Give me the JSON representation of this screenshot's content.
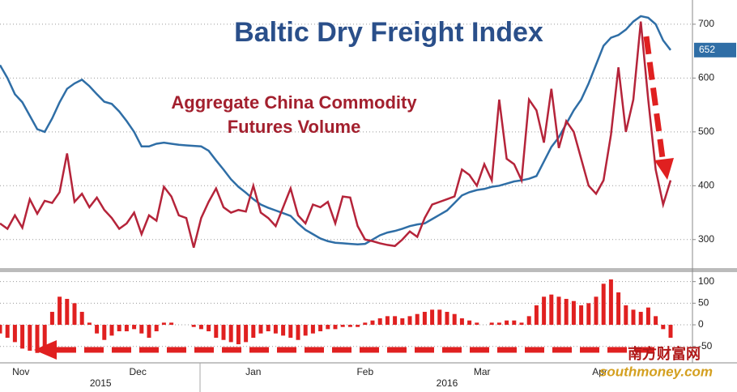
{
  "chart_data": [
    {
      "type": "line",
      "title": "Baltic Dry Freight Index",
      "annotation": "Aggregate China Commodity\nFutures Volume",
      "ylim": [
        247,
        745
      ],
      "yticks": [
        300,
        400,
        500,
        600,
        700
      ],
      "grid": true,
      "end_label": "652",
      "series": [
        {
          "name": "Baltic Dry Freight Index",
          "color": "#2f6ea6",
          "values": [
            624,
            600,
            570,
            555,
            530,
            505,
            500,
            525,
            555,
            580,
            590,
            597,
            585,
            570,
            556,
            552,
            538,
            520,
            500,
            473,
            473,
            478,
            480,
            478,
            476,
            475,
            474,
            473,
            465,
            447,
            430,
            412,
            398,
            387,
            375,
            365,
            359,
            354,
            349,
            344,
            330,
            318,
            310,
            302,
            297,
            294,
            293,
            292,
            291,
            292,
            300,
            308,
            313,
            316,
            320,
            325,
            328,
            330,
            338,
            346,
            354,
            368,
            382,
            388,
            392,
            394,
            398,
            400,
            404,
            408,
            410,
            413,
            418,
            445,
            472,
            490,
            515,
            540,
            560,
            590,
            625,
            660,
            675,
            680,
            690,
            705,
            715,
            712,
            700,
            670,
            652
          ]
        },
        {
          "name": "Aggregate China Commodity Futures Volume",
          "color": "#b5243a",
          "values": [
            330,
            320,
            345,
            322,
            375,
            348,
            372,
            368,
            388,
            460,
            370,
            385,
            360,
            378,
            355,
            340,
            320,
            330,
            350,
            310,
            345,
            335,
            398,
            380,
            345,
            340,
            285,
            340,
            370,
            395,
            360,
            350,
            355,
            352,
            400,
            350,
            340,
            325,
            360,
            395,
            345,
            330,
            365,
            360,
            370,
            330,
            380,
            378,
            325,
            300,
            297,
            293,
            290,
            288,
            300,
            315,
            305,
            340,
            365,
            370,
            375,
            380,
            430,
            420,
            400,
            440,
            410,
            560,
            450,
            440,
            410,
            560,
            540,
            480,
            580,
            470,
            520,
            500,
            450,
            400,
            385,
            410,
            495,
            620,
            500,
            560,
            705,
            560,
            430,
            365,
            410
          ]
        }
      ]
    },
    {
      "type": "bar",
      "color": "#e02020",
      "ylim": [
        -88,
        120
      ],
      "yticks": [
        -50,
        0,
        50,
        100
      ],
      "grid": true,
      "values": [
        -20,
        -30,
        -40,
        -55,
        -60,
        -65,
        -50,
        30,
        65,
        60,
        50,
        30,
        5,
        -20,
        -35,
        -25,
        -15,
        -15,
        -10,
        -20,
        -30,
        -15,
        5,
        5,
        0,
        0,
        -5,
        -10,
        -15,
        -30,
        -35,
        -40,
        -45,
        -40,
        -30,
        -20,
        -15,
        -20,
        -25,
        -30,
        -35,
        -25,
        -20,
        -15,
        -10,
        -10,
        -5,
        -5,
        -5,
        5,
        10,
        15,
        20,
        20,
        15,
        20,
        25,
        30,
        35,
        35,
        30,
        25,
        15,
        10,
        5,
        0,
        5,
        5,
        10,
        10,
        5,
        20,
        45,
        65,
        70,
        65,
        60,
        55,
        45,
        50,
        65,
        95,
        105,
        75,
        45,
        35,
        30,
        40,
        20,
        -10,
        -30
      ],
      "xticks": [
        {
          "value": 2.8,
          "label": "Nov"
        },
        {
          "value": 18.5,
          "label": "Dec"
        },
        {
          "value": 34,
          "label": "Jan"
        },
        {
          "value": 49,
          "label": "Feb"
        },
        {
          "value": 64.7,
          "label": "Mar"
        },
        {
          "value": 80.5,
          "label": "Apr"
        }
      ],
      "year_ticks": [
        {
          "value": 13.5,
          "label": "2015"
        },
        {
          "value": 60,
          "label": "2016"
        }
      ]
    }
  ],
  "watermark": {
    "cn": "南方财富网",
    "en": "southmoney.com"
  }
}
